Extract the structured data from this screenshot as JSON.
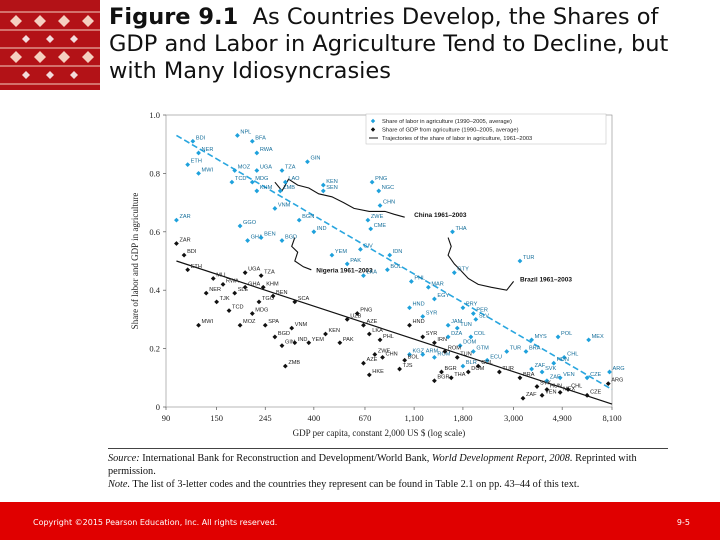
{
  "title": {
    "figure_label": "Figure 9.1",
    "text": "As Countries Develop, the Shares of GDP and Labor in Agriculture Tend to Decline, but with Many Idiosyncrasies"
  },
  "colors": {
    "footer_bg": "#e00000",
    "labor_series": "#1ea1dc",
    "gdp_series": "#111111",
    "trend_line": "#29a6df"
  },
  "source": {
    "source_label": "Source:",
    "source_text": "International Bank for Reconstruction and Development/World Bank, ",
    "source_title": "World Development Report, 2008.",
    "source_tail": " Reprinted with permission.",
    "note_label": "Note.",
    "note_text": " The list of 3-letter codes and the countries they represent can be found in Table 2.1 on pp. 43–44 of this text."
  },
  "footer": {
    "copyright": "Copyright ©2015 Pearson Education, Inc. All rights reserved.",
    "page": "9-5"
  },
  "chart_data": {
    "type": "scatter",
    "xlabel": "GDP per capita, constant 2,000 US $ (log scale)",
    "ylabel": "Share of labor and GDP in agriculture",
    "x_scale": "log",
    "xlim": [
      90,
      8100
    ],
    "ylim": [
      0,
      1.0
    ],
    "x_ticks": [
      90,
      150,
      245,
      400,
      670,
      1100,
      1800,
      3000,
      4900,
      8100
    ],
    "x_tick_labels": [
      "90",
      "150",
      "245",
      "400",
      "670",
      "1,100",
      "1,800",
      "3,000",
      "4,900",
      "8,100"
    ],
    "y_ticks": [
      0,
      0.2,
      0.4,
      0.6,
      0.8,
      1.0
    ],
    "y_tick_labels": [
      "0",
      "0.2",
      "0.4",
      "0.6",
      "0.8",
      "1.0"
    ],
    "legend_position": "top-right",
    "legend": [
      "Share of labor in agriculture (1990–2005, average)",
      "Share of GDP from agriculture (1990–2005, average)",
      "Trajectories of the share of labor in agriculture, 1961–2003"
    ],
    "series": [
      {
        "name": "Share of labor in agriculture (1990–2005, average)",
        "kind": "points",
        "points": [
          {
            "x": 118,
            "y": 0.91,
            "label": "BDI"
          },
          {
            "x": 125,
            "y": 0.87,
            "label": "NER"
          },
          {
            "x": 185,
            "y": 0.93,
            "label": "NPL"
          },
          {
            "x": 215,
            "y": 0.91,
            "label": "BFA"
          },
          {
            "x": 225,
            "y": 0.87,
            "label": "RWA"
          },
          {
            "x": 112,
            "y": 0.83,
            "label": "ETH"
          },
          {
            "x": 125,
            "y": 0.8,
            "label": "MWI"
          },
          {
            "x": 180,
            "y": 0.81,
            "label": "MOZ"
          },
          {
            "x": 225,
            "y": 0.81,
            "label": "UGA"
          },
          {
            "x": 290,
            "y": 0.81,
            "label": "TZA"
          },
          {
            "x": 375,
            "y": 0.84,
            "label": "GIN"
          },
          {
            "x": 175,
            "y": 0.77,
            "label": "TCD"
          },
          {
            "x": 215,
            "y": 0.77,
            "label": "MDG"
          },
          {
            "x": 300,
            "y": 0.77,
            "label": "LAO"
          },
          {
            "x": 225,
            "y": 0.74,
            "label": "KHM"
          },
          {
            "x": 285,
            "y": 0.74,
            "label": "ZMB"
          },
          {
            "x": 440,
            "y": 0.76,
            "label": "KEN"
          },
          {
            "x": 440,
            "y": 0.74,
            "label": "SEN"
          },
          {
            "x": 720,
            "y": 0.77,
            "label": "PNG"
          },
          {
            "x": 770,
            "y": 0.74,
            "label": "NGC"
          },
          {
            "x": 270,
            "y": 0.68,
            "label": "VNM"
          },
          {
            "x": 780,
            "y": 0.69,
            "label": "CHN"
          },
          {
            "x": 345,
            "y": 0.64,
            "label": "BGN"
          },
          {
            "x": 100,
            "y": 0.64,
            "label": "ZAR"
          },
          {
            "x": 190,
            "y": 0.62,
            "label": "GGO"
          },
          {
            "x": 690,
            "y": 0.64,
            "label": "ZWE"
          },
          {
            "x": 710,
            "y": 0.61,
            "label": "CME"
          },
          {
            "x": 400,
            "y": 0.6,
            "label": "IND"
          },
          {
            "x": 205,
            "y": 0.57,
            "label": "GHA"
          },
          {
            "x": 235,
            "y": 0.58,
            "label": "BEN"
          },
          {
            "x": 290,
            "y": 0.57,
            "label": "BGD"
          },
          {
            "x": 1620,
            "y": 0.6,
            "label": "THA"
          },
          {
            "x": 640,
            "y": 0.54,
            "label": "CIV"
          },
          {
            "x": 480,
            "y": 0.52,
            "label": "YEM"
          },
          {
            "x": 860,
            "y": 0.52,
            "label": "IDN"
          },
          {
            "x": 560,
            "y": 0.49,
            "label": "PAK"
          },
          {
            "x": 840,
            "y": 0.47,
            "label": "BOL"
          },
          {
            "x": 660,
            "y": 0.45,
            "label": "LKA"
          },
          {
            "x": 1070,
            "y": 0.43,
            "label": "PHL"
          },
          {
            "x": 1270,
            "y": 0.41,
            "label": "MAR"
          },
          {
            "x": 1650,
            "y": 0.46,
            "label": "GTY"
          },
          {
            "x": 3200,
            "y": 0.5,
            "label": "TUR"
          },
          {
            "x": 1350,
            "y": 0.37,
            "label": "EGY"
          },
          {
            "x": 1800,
            "y": 0.34,
            "label": "PRY"
          },
          {
            "x": 2000,
            "y": 0.32,
            "label": "PER"
          },
          {
            "x": 2050,
            "y": 0.3,
            "label": "SLV"
          },
          {
            "x": 1050,
            "y": 0.34,
            "label": "HND"
          },
          {
            "x": 1200,
            "y": 0.31,
            "label": "SYR"
          },
          {
            "x": 1550,
            "y": 0.28,
            "label": "JAM"
          },
          {
            "x": 1700,
            "y": 0.27,
            "label": "TUN"
          },
          {
            "x": 1550,
            "y": 0.24,
            "label": "DZA"
          },
          {
            "x": 1950,
            "y": 0.24,
            "label": "COL"
          },
          {
            "x": 1750,
            "y": 0.21,
            "label": "DOM"
          },
          {
            "x": 3600,
            "y": 0.23,
            "label": "MYS"
          },
          {
            "x": 4700,
            "y": 0.24,
            "label": "POL"
          },
          {
            "x": 3400,
            "y": 0.19,
            "label": "BRA"
          },
          {
            "x": 6400,
            "y": 0.23,
            "label": "MEX"
          },
          {
            "x": 5000,
            "y": 0.17,
            "label": "CHL"
          },
          {
            "x": 4500,
            "y": 0.15,
            "label": "HUN"
          },
          {
            "x": 4000,
            "y": 0.12,
            "label": "SVK"
          },
          {
            "x": 6300,
            "y": 0.1,
            "label": "CZE"
          },
          {
            "x": 7900,
            "y": 0.12,
            "label": "ARG"
          },
          {
            "x": 4800,
            "y": 0.1,
            "label": "VEN"
          },
          {
            "x": 4200,
            "y": 0.09,
            "label": "ZAF"
          },
          {
            "x": 2800,
            "y": 0.19,
            "label": "TUR2"
          },
          {
            "x": 3600,
            "y": 0.13,
            "label": "ZAF2"
          },
          {
            "x": 2300,
            "y": 0.16,
            "label": "ECU"
          },
          {
            "x": 2000,
            "y": 0.19,
            "label": "GTM"
          },
          {
            "x": 1800,
            "y": 0.14,
            "label": "BLR"
          },
          {
            "x": 1350,
            "y": 0.17,
            "label": "ROM"
          },
          {
            "x": 1200,
            "y": 0.18,
            "label": "ARM"
          },
          {
            "x": 1050,
            "y": 0.18,
            "label": "KGZ"
          }
        ]
      },
      {
        "name": "Share of GDP from agriculture (1990–2005, average)",
        "kind": "points",
        "points": [
          {
            "x": 100,
            "y": 0.56,
            "label": "ZAR"
          },
          {
            "x": 108,
            "y": 0.52,
            "label": "BDI"
          },
          {
            "x": 112,
            "y": 0.47,
            "label": "ETH"
          },
          {
            "x": 200,
            "y": 0.46,
            "label": "UGA"
          },
          {
            "x": 235,
            "y": 0.45,
            "label": "TZA"
          },
          {
            "x": 145,
            "y": 0.44,
            "label": "MLI"
          },
          {
            "x": 160,
            "y": 0.42,
            "label": "RWA"
          },
          {
            "x": 200,
            "y": 0.41,
            "label": "GHA"
          },
          {
            "x": 240,
            "y": 0.41,
            "label": "KHM"
          },
          {
            "x": 135,
            "y": 0.39,
            "label": "NER"
          },
          {
            "x": 180,
            "y": 0.39,
            "label": "SLE"
          },
          {
            "x": 265,
            "y": 0.38,
            "label": "BEN"
          },
          {
            "x": 150,
            "y": 0.36,
            "label": "TJK"
          },
          {
            "x": 230,
            "y": 0.36,
            "label": "TGO"
          },
          {
            "x": 330,
            "y": 0.36,
            "label": "SCA"
          },
          {
            "x": 170,
            "y": 0.33,
            "label": "TCD"
          },
          {
            "x": 215,
            "y": 0.32,
            "label": "MDG"
          },
          {
            "x": 125,
            "y": 0.28,
            "label": "MWI"
          },
          {
            "x": 190,
            "y": 0.28,
            "label": "MOZ"
          },
          {
            "x": 245,
            "y": 0.28,
            "label": "SPA"
          },
          {
            "x": 320,
            "y": 0.27,
            "label": "VNM"
          },
          {
            "x": 270,
            "y": 0.24,
            "label": "BGD"
          },
          {
            "x": 290,
            "y": 0.21,
            "label": "GIN"
          },
          {
            "x": 330,
            "y": 0.22,
            "label": "IND"
          },
          {
            "x": 380,
            "y": 0.22,
            "label": "YEM"
          },
          {
            "x": 450,
            "y": 0.25,
            "label": "KEN"
          },
          {
            "x": 520,
            "y": 0.22,
            "label": "PAK"
          },
          {
            "x": 560,
            "y": 0.3,
            "label": "UZB"
          },
          {
            "x": 620,
            "y": 0.32,
            "label": "PNG"
          },
          {
            "x": 660,
            "y": 0.28,
            "label": "AZE"
          },
          {
            "x": 700,
            "y": 0.25,
            "label": "LKA"
          },
          {
            "x": 780,
            "y": 0.23,
            "label": "PHL"
          },
          {
            "x": 740,
            "y": 0.18,
            "label": "ZWE"
          },
          {
            "x": 660,
            "y": 0.15,
            "label": "AZE2"
          },
          {
            "x": 300,
            "y": 0.14,
            "label": "ZMB"
          },
          {
            "x": 800,
            "y": 0.17,
            "label": "CHN"
          },
          {
            "x": 700,
            "y": 0.11,
            "label": "HKE"
          },
          {
            "x": 1000,
            "y": 0.16,
            "label": "BOL"
          },
          {
            "x": 950,
            "y": 0.13,
            "label": "TJS"
          },
          {
            "x": 1050,
            "y": 0.28,
            "label": "HND"
          },
          {
            "x": 1200,
            "y": 0.24,
            "label": "SYR"
          },
          {
            "x": 1350,
            "y": 0.22,
            "label": "IRN"
          },
          {
            "x": 1500,
            "y": 0.19,
            "label": "ROM"
          },
          {
            "x": 1700,
            "y": 0.17,
            "label": "TUN"
          },
          {
            "x": 1450,
            "y": 0.12,
            "label": "BGR"
          },
          {
            "x": 1600,
            "y": 0.1,
            "label": "THA"
          },
          {
            "x": 1900,
            "y": 0.12,
            "label": "DOM"
          },
          {
            "x": 1350,
            "y": 0.09,
            "label": "BGR2"
          },
          {
            "x": 2100,
            "y": 0.14,
            "label": "COL"
          },
          {
            "x": 2600,
            "y": 0.12,
            "label": "TUR"
          },
          {
            "x": 3200,
            "y": 0.1,
            "label": "BRA"
          },
          {
            "x": 3800,
            "y": 0.07,
            "label": "SVK"
          },
          {
            "x": 4200,
            "y": 0.06,
            "label": "HUN"
          },
          {
            "x": 4800,
            "y": 0.05,
            "label": "MEX"
          },
          {
            "x": 5200,
            "y": 0.06,
            "label": "CHL"
          },
          {
            "x": 6300,
            "y": 0.04,
            "label": "CZE"
          },
          {
            "x": 7800,
            "y": 0.08,
            "label": "ARG"
          },
          {
            "x": 3300,
            "y": 0.03,
            "label": "ZAF"
          },
          {
            "x": 4000,
            "y": 0.04,
            "label": "VEN"
          }
        ]
      },
      {
        "name": "Trend (share of labor in agriculture)",
        "kind": "trend",
        "style": "dashed-blue",
        "points": [
          {
            "x": 100,
            "y": 0.93
          },
          {
            "x": 8100,
            "y": 0.06
          }
        ]
      },
      {
        "name": "Trend (share of GDP from agriculture)",
        "kind": "trend",
        "style": "solid-black",
        "points": [
          {
            "x": 100,
            "y": 0.5
          },
          {
            "x": 8100,
            "y": 0.01
          }
        ]
      },
      {
        "name": "China 1961–2003",
        "kind": "trajectory",
        "label_text": "China 1961–2003",
        "label_at": {
          "x": 1100,
          "y": 0.65
        },
        "points": [
          {
            "x": 270,
            "y": 0.77
          },
          {
            "x": 290,
            "y": 0.74
          },
          {
            "x": 310,
            "y": 0.78
          },
          {
            "x": 340,
            "y": 0.76
          },
          {
            "x": 380,
            "y": 0.75
          },
          {
            "x": 420,
            "y": 0.73
          },
          {
            "x": 480,
            "y": 0.72
          },
          {
            "x": 540,
            "y": 0.7
          },
          {
            "x": 600,
            "y": 0.68
          },
          {
            "x": 700,
            "y": 0.67
          },
          {
            "x": 820,
            "y": 0.67
          },
          {
            "x": 900,
            "y": 0.66
          },
          {
            "x": 1000,
            "y": 0.65
          }
        ]
      },
      {
        "name": "Nigeria 1961–2003",
        "kind": "trajectory",
        "label_text": "Nigeria 1961–2003",
        "label_at": {
          "x": 410,
          "y": 0.46
        },
        "points": [
          {
            "x": 330,
            "y": 0.58
          },
          {
            "x": 320,
            "y": 0.55
          },
          {
            "x": 340,
            "y": 0.53
          },
          {
            "x": 330,
            "y": 0.5
          },
          {
            "x": 360,
            "y": 0.48
          },
          {
            "x": 390,
            "y": 0.47
          }
        ]
      },
      {
        "name": "Brazil 1961–2003",
        "kind": "trajectory",
        "label_text": "Brazil 1961–2003",
        "label_at": {
          "x": 3200,
          "y": 0.43
        },
        "points": [
          {
            "x": 1550,
            "y": 0.58
          },
          {
            "x": 1600,
            "y": 0.55
          },
          {
            "x": 1550,
            "y": 0.52
          },
          {
            "x": 1650,
            "y": 0.49
          },
          {
            "x": 1750,
            "y": 0.47
          },
          {
            "x": 1900,
            "y": 0.44
          },
          {
            "x": 2100,
            "y": 0.42
          },
          {
            "x": 2400,
            "y": 0.41
          },
          {
            "x": 2800,
            "y": 0.4
          },
          {
            "x": 3000,
            "y": 0.43
          }
        ]
      }
    ]
  }
}
